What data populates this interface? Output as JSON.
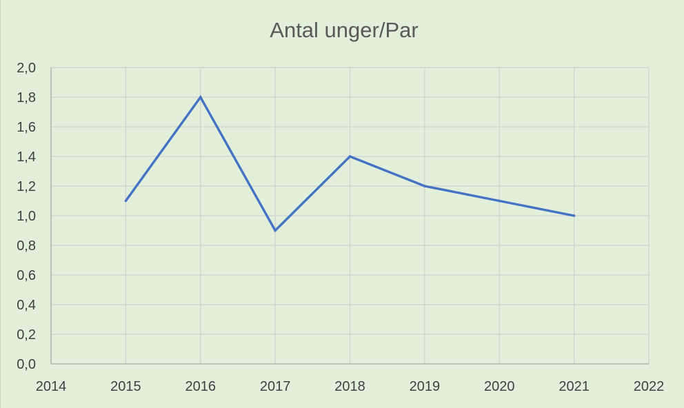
{
  "chart_data": {
    "type": "line",
    "title": "Antal unger/Par",
    "xlabel": "",
    "ylabel": "",
    "x": [
      2015,
      2016,
      2017,
      2018,
      2019,
      2020,
      2021
    ],
    "series": [
      {
        "values": [
          1.1,
          1.8,
          0.9,
          1.4,
          1.2,
          1.1,
          1.0
        ]
      }
    ],
    "xlim": [
      2014,
      2022
    ],
    "ylim": [
      0,
      2
    ],
    "x_ticks": [
      "2014",
      "2015",
      "2016",
      "2017",
      "2018",
      "2019",
      "2020",
      "2021",
      "2022"
    ],
    "y_ticks": [
      "0,0",
      "0,2",
      "0,4",
      "0,6",
      "0,8",
      "1,0",
      "1,2",
      "1,4",
      "1,6",
      "1,8",
      "2,0"
    ],
    "grid": true,
    "legend": "none",
    "colors": {
      "background": "#e2efda",
      "line": "#4472c4",
      "grid": "#d0d0d0",
      "axis": "#a6a6a6"
    }
  }
}
